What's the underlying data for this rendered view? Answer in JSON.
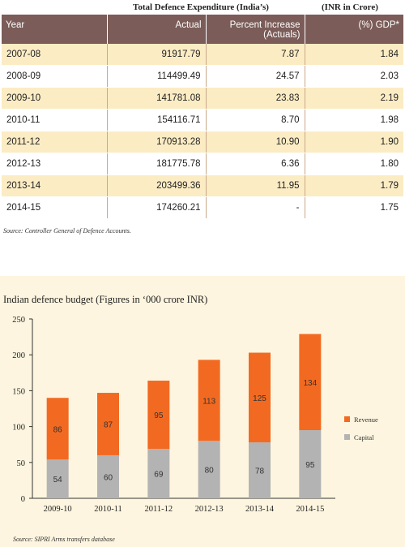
{
  "table": {
    "title": "Total Defence Expenditure (India’s)",
    "unit": "(INR in Crore)",
    "headers": [
      "Year",
      "Actual",
      "Percent Increase\n(Actuals)",
      "(%) GDP*"
    ],
    "header_year": "Year",
    "header_actual": "Actual",
    "header_pct_line1": "Percent Increase",
    "header_pct_line2": "(Actuals)",
    "header_gdp": "(%) GDP*",
    "rows": [
      {
        "year": "2007-08",
        "actual": "91917.79",
        "pct": "7.87",
        "gdp": "1.84"
      },
      {
        "year": "2008-09",
        "actual": "114499.49",
        "pct": "24.57",
        "gdp": "2.03"
      },
      {
        "year": "2009-10",
        "actual": "141781.08",
        "pct": "23.83",
        "gdp": "2.19"
      },
      {
        "year": "2010-11",
        "actual": "154116.71",
        "pct": "8.70",
        "gdp": "1.98"
      },
      {
        "year": "2011-12",
        "actual": "170913.28",
        "pct": "10.90",
        "gdp": "1.90"
      },
      {
        "year": "2012-13",
        "actual": "181775.78",
        "pct": "6.36",
        "gdp": "1.80"
      },
      {
        "year": "2013-14",
        "actual": "203499.36",
        "pct": "11.95",
        "gdp": "1.79"
      },
      {
        "year": "2014-15",
        "actual": "174260.21",
        "pct": "-",
        "gdp": "1.75"
      }
    ],
    "source": "Source: Controller General of Defence Accounts."
  },
  "chart_data": {
    "type": "bar",
    "stacked": true,
    "title": "Indian defence budget (Figures in ‘000 crore INR)",
    "categories": [
      "2009-10",
      "2010-11",
      "2011-12",
      "2012-13",
      "2013-14",
      "2014-15"
    ],
    "series": [
      {
        "name": "Capital",
        "values": [
          54,
          60,
          69,
          80,
          78,
          95
        ],
        "color": "#b3b3b3"
      },
      {
        "name": "Revenue",
        "values": [
          86,
          87,
          95,
          113,
          125,
          134
        ],
        "color": "#f26a21"
      }
    ],
    "ylim": [
      0,
      250
    ],
    "yticks": [
      0,
      50,
      100,
      150,
      200,
      250
    ],
    "legend_position": "right",
    "source": "Source: SIPRI Arms transfers database"
  }
}
